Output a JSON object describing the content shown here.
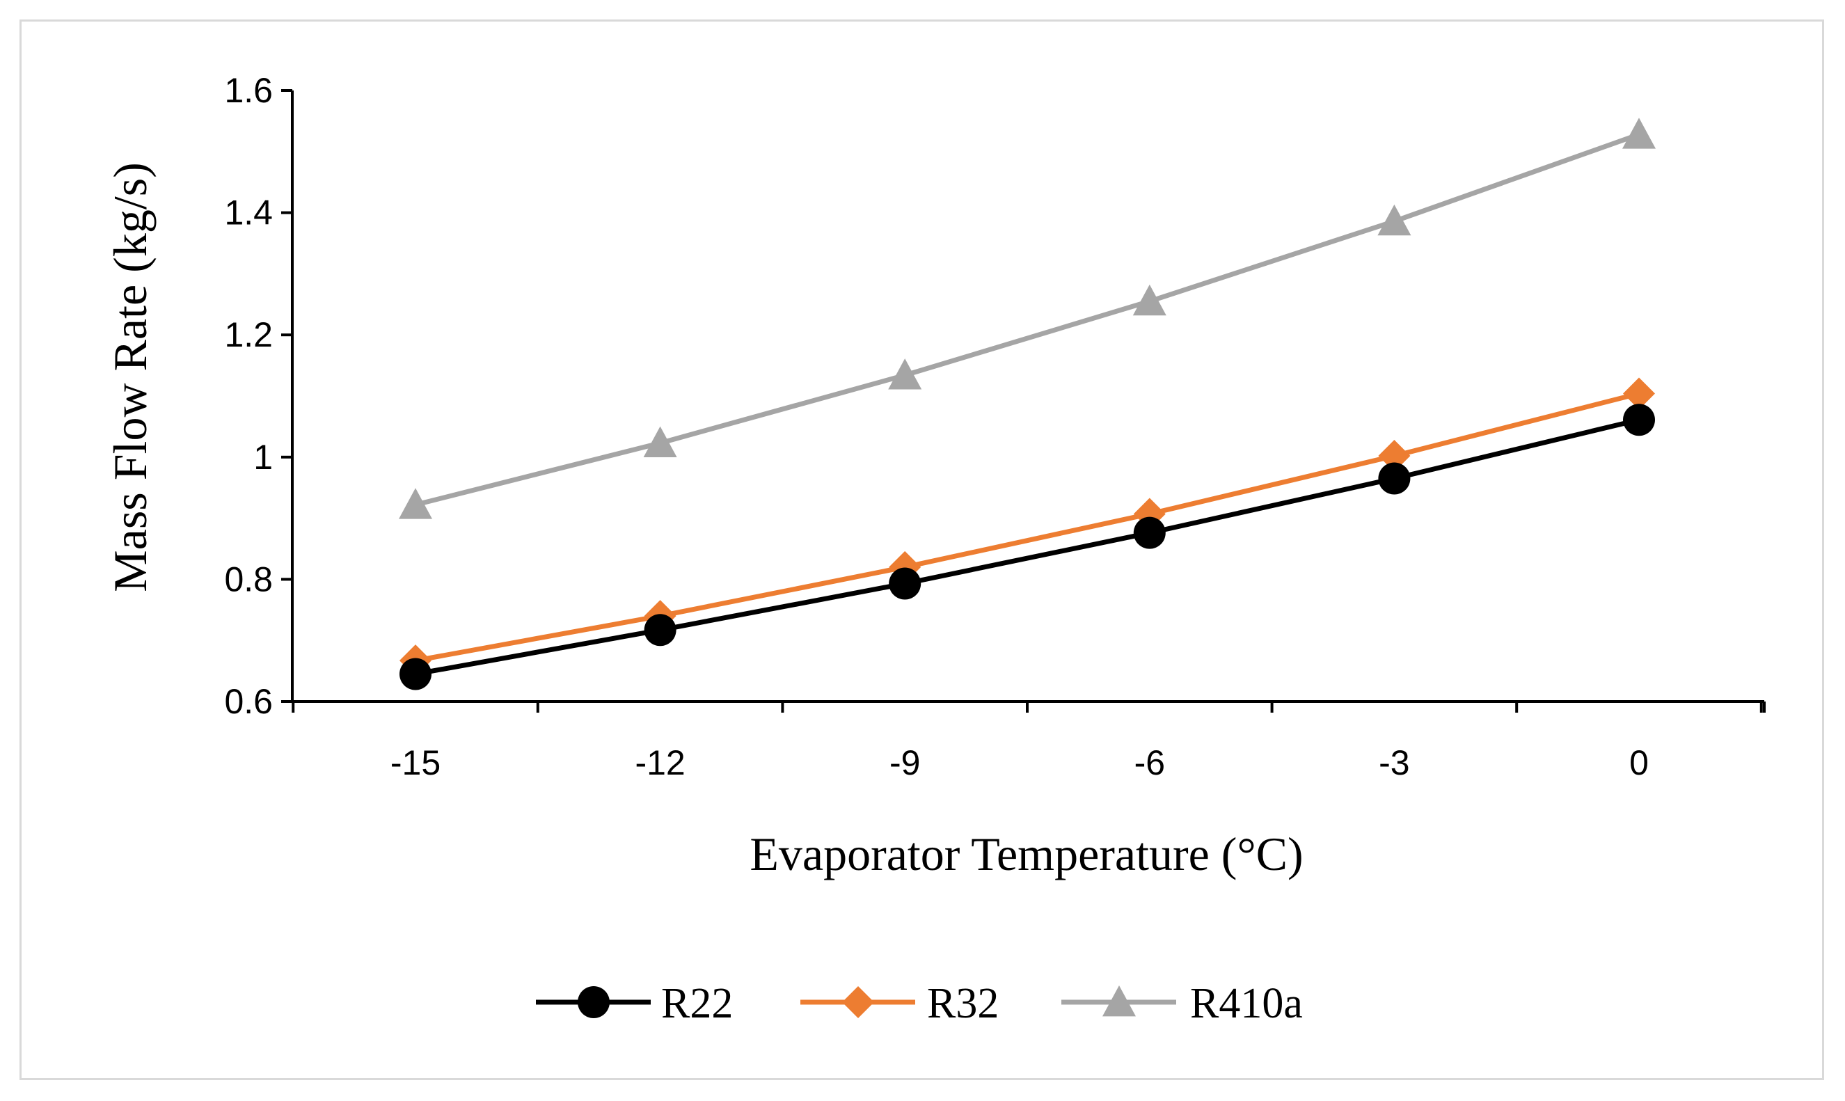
{
  "chart_data": {
    "type": "line",
    "title": "",
    "xlabel": "Evaporator Temperature (°C)",
    "ylabel": "Mass Flow Rate (kg/s)",
    "categories": [
      "-15",
      "-12",
      "-9",
      "-6",
      "-3",
      "0"
    ],
    "x": [
      -15,
      -12,
      -9,
      -6,
      -3,
      0
    ],
    "ylim": [
      0.6,
      1.6
    ],
    "yticks": [
      "0.6",
      "0.8",
      "1",
      "1.2",
      "1.4",
      "1.6"
    ],
    "ytick_values": [
      0.6,
      0.8,
      1.0,
      1.2,
      1.4,
      1.6
    ],
    "grid": false,
    "legend_position": "bottom",
    "series": [
      {
        "name": "R22",
        "marker": "circle",
        "color": "#000000",
        "values": [
          0.645,
          0.717,
          0.793,
          0.876,
          0.965,
          1.061
        ]
      },
      {
        "name": "R32",
        "marker": "diamond",
        "color": "#ED7D31",
        "values": [
          0.667,
          0.74,
          0.82,
          0.907,
          1.002,
          1.104
        ]
      },
      {
        "name": "R410a",
        "marker": "triangle",
        "color": "#A5A5A5",
        "values": [
          0.922,
          1.023,
          1.134,
          1.255,
          1.386,
          1.528
        ]
      }
    ]
  }
}
